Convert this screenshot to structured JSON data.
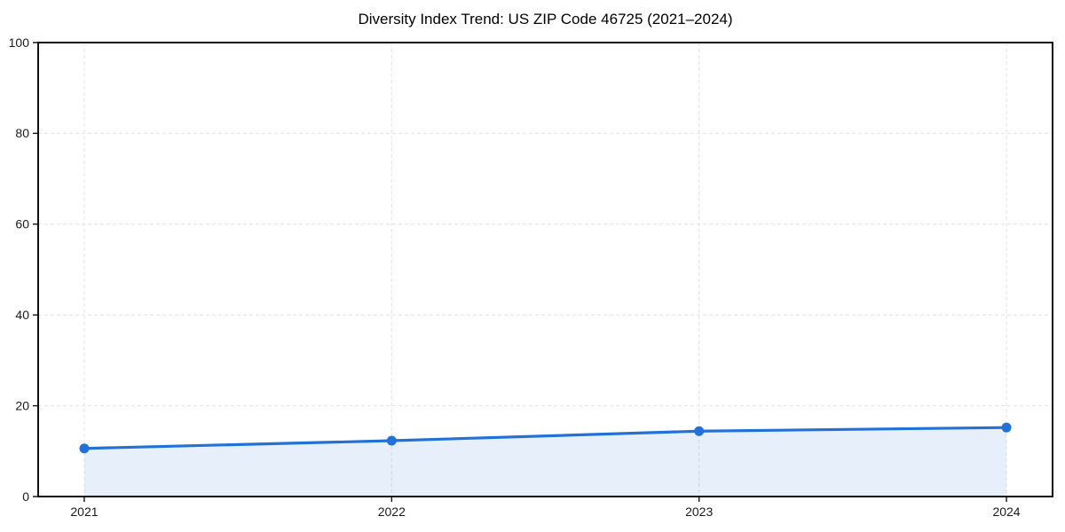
{
  "figure": {
    "background": "#ffffff"
  },
  "chart_data": {
    "type": "area",
    "title": "Diversity Index Trend: US ZIP Code 46725 (2021–2024)",
    "series": [
      {
        "name": "Diversity Index",
        "x": [
          2021,
          2022,
          2023,
          2024
        ],
        "values": [
          10.6,
          12.3,
          14.4,
          15.2
        ]
      }
    ],
    "xlabel": "",
    "ylabel": "",
    "xlim": [
      2020.85,
      2024.15
    ],
    "ylim": [
      0,
      100
    ],
    "xticks": [
      2021,
      2022,
      2023,
      2024
    ],
    "xtick_labels": [
      "2021",
      "2022",
      "2023",
      "2024"
    ],
    "yticks": [
      0,
      20,
      40,
      60,
      80,
      100
    ],
    "ytick_labels": [
      "0",
      "20",
      "40",
      "60",
      "80",
      "100"
    ],
    "grid": true,
    "grid_style": "dashed",
    "legend": false,
    "area_fill": true,
    "colors": {
      "line": "#2271d9",
      "marker": "#2271d9",
      "fill": "rgba(34,113,217,0.11)",
      "grid": "#e3e3e3",
      "axis": "#111111",
      "tick_text": "#1a1a1a",
      "title_text": "#000000"
    }
  }
}
